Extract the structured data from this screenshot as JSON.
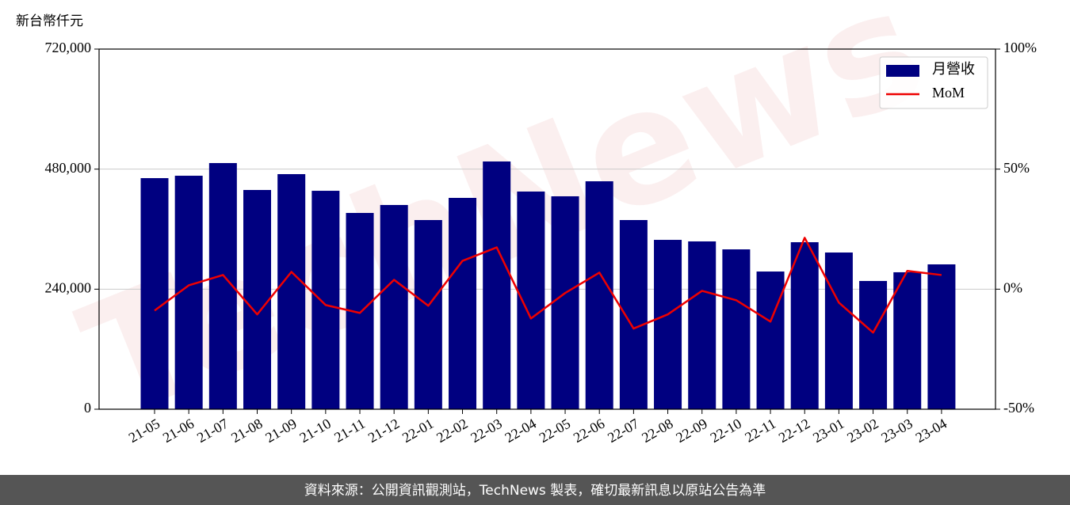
{
  "chart_data": {
    "type": "bar",
    "y_label": "新台幣仟元",
    "watermark": "TechNews",
    "source": "資料來源：公開資訊觀測站，TechNews 製表，確切最新訊息以原站公告為準",
    "categories": [
      "21-05",
      "21-06",
      "21-07",
      "21-08",
      "21-09",
      "21-10",
      "21-11",
      "21-12",
      "22-01",
      "22-02",
      "22-03",
      "22-04",
      "22-05",
      "22-06",
      "22-07",
      "22-08",
      "22-09",
      "22-10",
      "22-11",
      "22-12",
      "23-01",
      "23-02",
      "23-03",
      "23-04"
    ],
    "series": [
      {
        "name": "月營收",
        "type": "bar",
        "color": "#000080",
        "values": [
          462000,
          466800,
          492100,
          438300,
          470000,
          436700,
          392400,
          408300,
          378200,
          422500,
          495300,
          435200,
          425700,
          455700,
          378200,
          338600,
          335500,
          319600,
          275300,
          333900,
          313300,
          256400,
          273800,
          289600
        ]
      },
      {
        "name": "MoM",
        "type": "line",
        "color": "#ee0000",
        "axis": "y2",
        "values": [
          -8.9,
          1.6,
          5.9,
          -10.5,
          7.2,
          -6.6,
          -9.9,
          3.9,
          -6.9,
          11.8,
          17.4,
          -12.2,
          -1.6,
          6.9,
          -16.4,
          -10.5,
          -0.7,
          -4.6,
          -13.5,
          21.4,
          -5.6,
          -18.1,
          7.6,
          5.9
        ]
      }
    ],
    "ylim": [
      0,
      720000
    ],
    "yticks": [
      0,
      {
        "value": 240000,
        "label": "240,000"
      },
      {
        "value": 480000,
        "label": "480,000"
      },
      {
        "value": 720000,
        "label": "720,000"
      }
    ],
    "y2lim": [
      -50,
      100
    ],
    "y2ticks": [
      {
        "value": -50,
        "label": "-50%"
      },
      {
        "value": 0,
        "label": "0%"
      },
      {
        "value": 50,
        "label": "50%"
      },
      {
        "value": 100,
        "label": "100%"
      }
    ],
    "grid": true,
    "legend": "upper right"
  }
}
